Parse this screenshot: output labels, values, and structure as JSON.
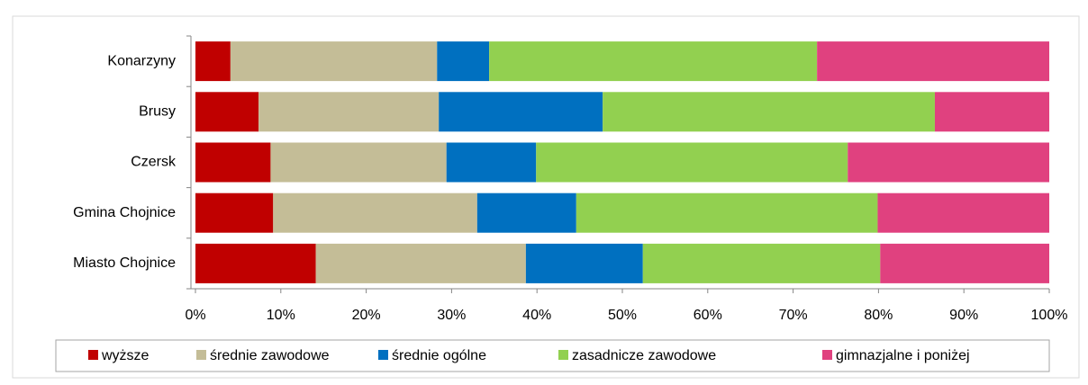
{
  "chart_data": {
    "type": "stacked_barh",
    "categories": [
      "Konarzyny",
      "Brusy",
      "Czersk",
      "Gmina Chojnice",
      "Miasto Chojnice"
    ],
    "series": [
      {
        "name": "wyższe",
        "color": "#c00000",
        "values": [
          4.1,
          7.4,
          8.8,
          9.1,
          14.1
        ]
      },
      {
        "name": "średnie zawodowe",
        "color": "#c4bd97",
        "values": [
          24.2,
          21.1,
          20.6,
          23.9,
          24.6
        ]
      },
      {
        "name": "średnie ogólne",
        "color": "#0070c0",
        "values": [
          6.1,
          19.2,
          10.5,
          11.6,
          13.7
        ]
      },
      {
        "name": "zasadnicze zawodowe",
        "color": "#92d050",
        "values": [
          38.4,
          38.9,
          36.5,
          35.3,
          27.8
        ]
      },
      {
        "name": "gimnazjalne i poniżej",
        "color": "#e0417f",
        "values": [
          27.2,
          13.4,
          23.6,
          20.1,
          19.8
        ]
      }
    ],
    "xlim": [
      0,
      100
    ],
    "xticks": [
      {
        "value": 0,
        "label": "0%"
      },
      {
        "value": 10,
        "label": "10%"
      },
      {
        "value": 20,
        "label": "20%"
      },
      {
        "value": 30,
        "label": "30%"
      },
      {
        "value": 40,
        "label": "40%"
      },
      {
        "value": 50,
        "label": "50%"
      },
      {
        "value": 60,
        "label": "60%"
      },
      {
        "value": 70,
        "label": "70%"
      },
      {
        "value": 80,
        "label": "80%"
      },
      {
        "value": 90,
        "label": "90%"
      },
      {
        "value": 100,
        "label": "100%"
      }
    ],
    "legend": "bottom"
  }
}
